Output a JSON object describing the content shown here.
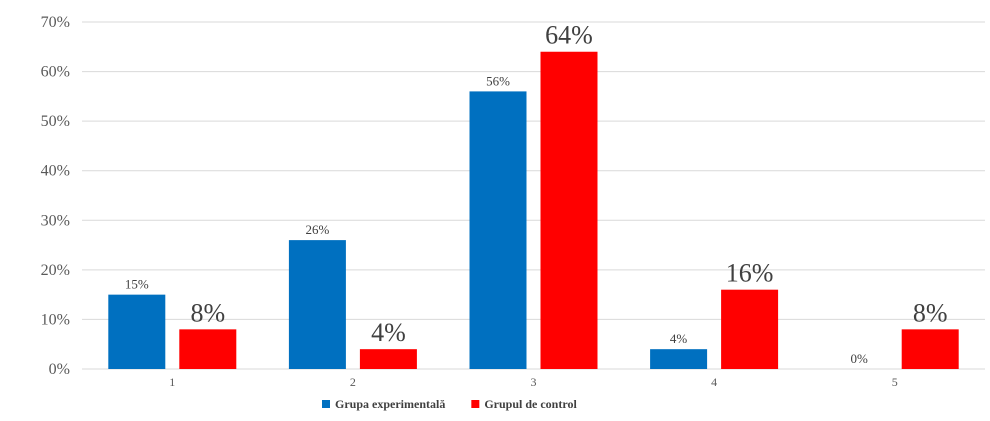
{
  "chart_data": {
    "type": "bar",
    "categories": [
      "1",
      "2",
      "3",
      "4",
      "5"
    ],
    "series": [
      {
        "name": "Grupa experimentală",
        "values": [
          15,
          26,
          56,
          4,
          0
        ],
        "labels": [
          "15%",
          "26%",
          "56%",
          "4%",
          "0%"
        ],
        "color": "#0070c0"
      },
      {
        "name": "Grupul de control",
        "values": [
          8,
          4,
          64,
          16,
          8
        ],
        "labels": [
          "8%",
          "4%",
          "64%",
          "16%",
          "8%"
        ],
        "color": "#ff0000"
      }
    ],
    "ylim": [
      0,
      70
    ],
    "yticks": [
      "0%",
      "10%",
      "20%",
      "30%",
      "40%",
      "50%",
      "60%",
      "70%"
    ],
    "grid": true,
    "legend_position": "bottom"
  }
}
